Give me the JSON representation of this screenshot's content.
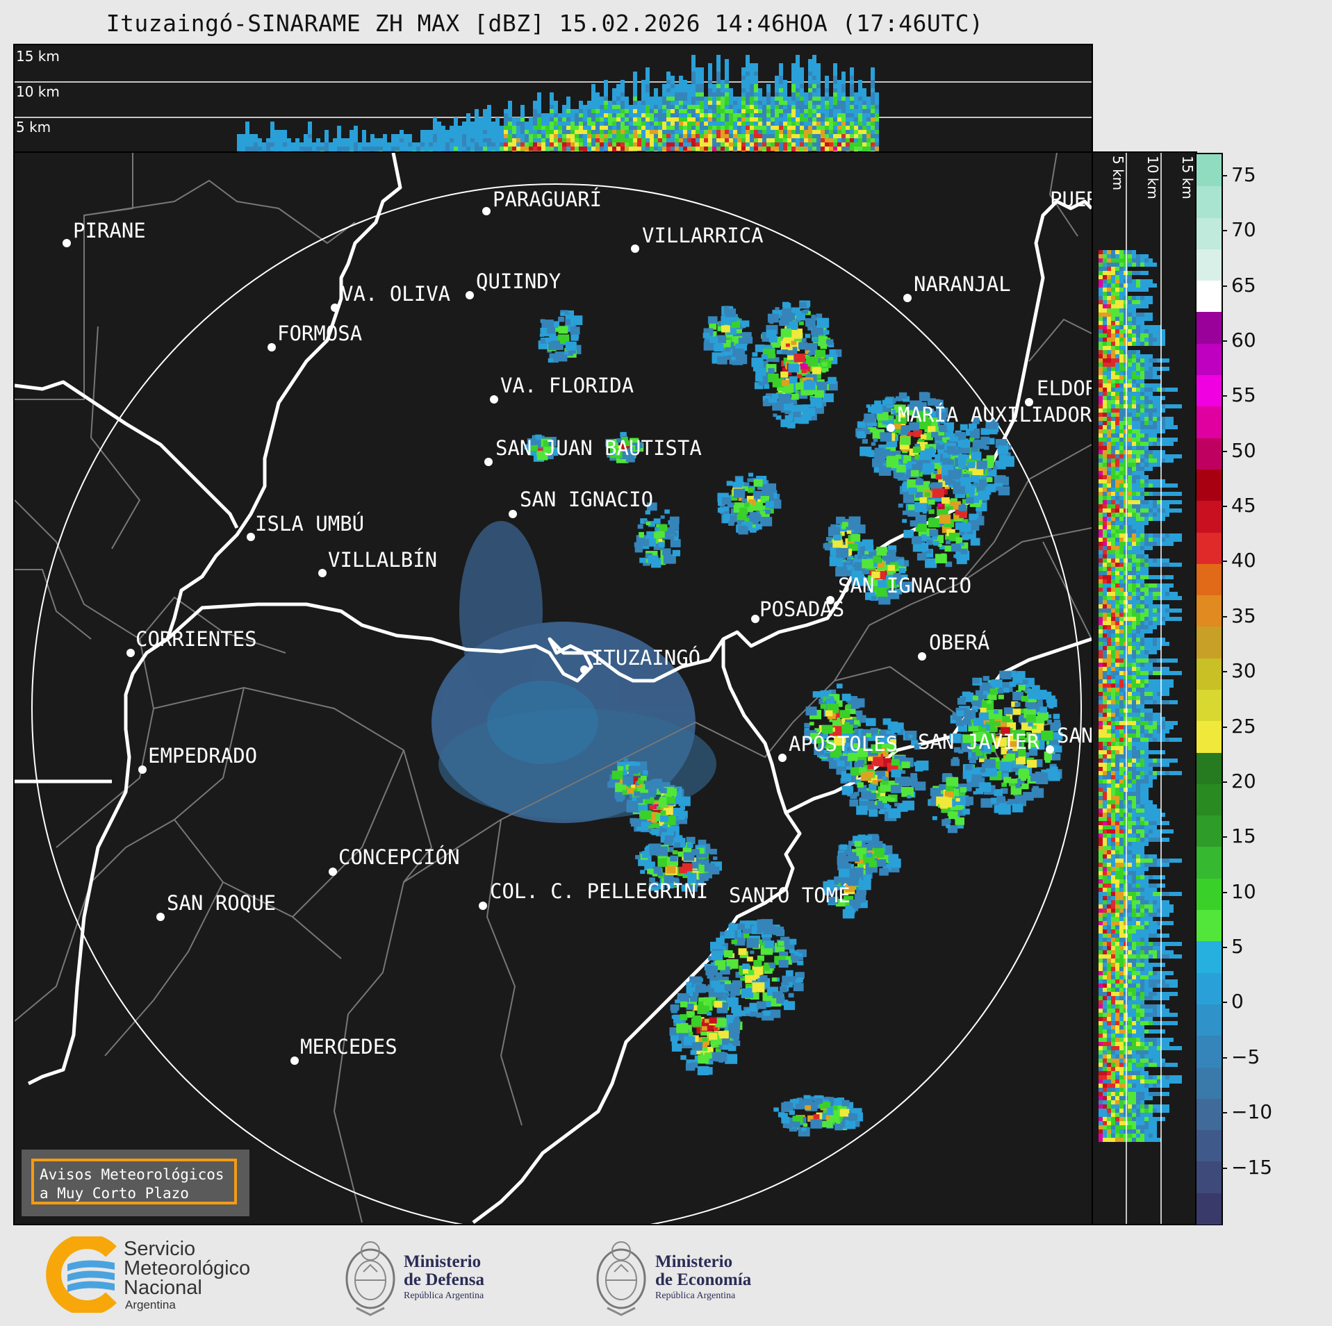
{
  "title": "Ituzaingó-SINARAME ZH MAX [dBZ] 15.02.2026 14:46HOA (17:46UTC)",
  "top_profile": {
    "height_labels": [
      "15 km",
      "10 km",
      "5 km"
    ]
  },
  "side_profile": {
    "height_labels": [
      "5 km",
      "10 km",
      "15 km"
    ]
  },
  "cities": [
    {
      "name": "PIRANE"
    },
    {
      "name": "PARAGUARÍ"
    },
    {
      "name": "VILLARRICA"
    },
    {
      "name": "QUIINDY"
    },
    {
      "name": "VA. OLIVA"
    },
    {
      "name": "NARANJAL"
    },
    {
      "name": "FORMOSA"
    },
    {
      "name": "VA. FLORIDA"
    },
    {
      "name": "ELDOR"
    },
    {
      "name": "MARÍA AUXILIADORA"
    },
    {
      "name": "SAN JUAN BAUTISTA"
    },
    {
      "name": "SAN IGNACIO"
    },
    {
      "name": "ISLA UMBÚ"
    },
    {
      "name": "VILLALBÍN"
    },
    {
      "name": "SAN IGNACIO"
    },
    {
      "name": "POSADAS"
    },
    {
      "name": "CORRIENTES"
    },
    {
      "name": "ITUZAINGÓ"
    },
    {
      "name": "OBERÁ"
    },
    {
      "name": "EMPEDRADO"
    },
    {
      "name": "APÓSTOLES"
    },
    {
      "name": "SAN JAVIER"
    },
    {
      "name": "SAN"
    },
    {
      "name": "CONCEPCIÓN"
    },
    {
      "name": "COL. C. PELLEGRINI"
    },
    {
      "name": "SANTO TOMÉ"
    },
    {
      "name": "SAN ROQUE"
    },
    {
      "name": "MERCEDES"
    },
    {
      "name": "PUER"
    }
  ],
  "colorbar": {
    "unit": "dBZ",
    "tick_labels": [
      "75",
      "70",
      "65",
      "60",
      "55",
      "50",
      "45",
      "40",
      "35",
      "30",
      "25",
      "20",
      "15",
      "10",
      "5",
      "0",
      "−5",
      "−10",
      "−15"
    ],
    "range": [
      -20,
      77
    ],
    "colors": [
      "#3a3a6a",
      "#3d4a7a",
      "#3f5a8a",
      "#3f6a9a",
      "#3a7aaa",
      "#3585ba",
      "#2f92c8",
      "#2aa0d8",
      "#26b0e0",
      "#52e63a",
      "#3ad02a",
      "#36b830",
      "#2e9c28",
      "#2a8a22",
      "#267a20",
      "#f0e83a",
      "#d8d830",
      "#c8c024",
      "#c8a028",
      "#e08a20",
      "#e06a18",
      "#e02a2a",
      "#c81020",
      "#a80010",
      "#c00060",
      "#e000a0",
      "#f000e0",
      "#c000c0",
      "#9a009a",
      "#ffffff",
      "#d8f0e8",
      "#c0eadc",
      "#a8e4d0",
      "#90dcc0"
    ]
  },
  "warning_box": {
    "line1": "Avisos Meteorológicos",
    "line2": "a Muy Corto Plazo"
  },
  "logos": {
    "smn": {
      "line1": "Servicio",
      "line2": "Meteorológico",
      "line3": "Nacional",
      "line4": "Argentina"
    },
    "defensa": {
      "line1": "Ministerio",
      "line2": "de Defensa",
      "line3": "República Argentina"
    },
    "economia": {
      "line1": "Ministerio",
      "line2": "de Economía",
      "line3": "República Argentina"
    }
  }
}
